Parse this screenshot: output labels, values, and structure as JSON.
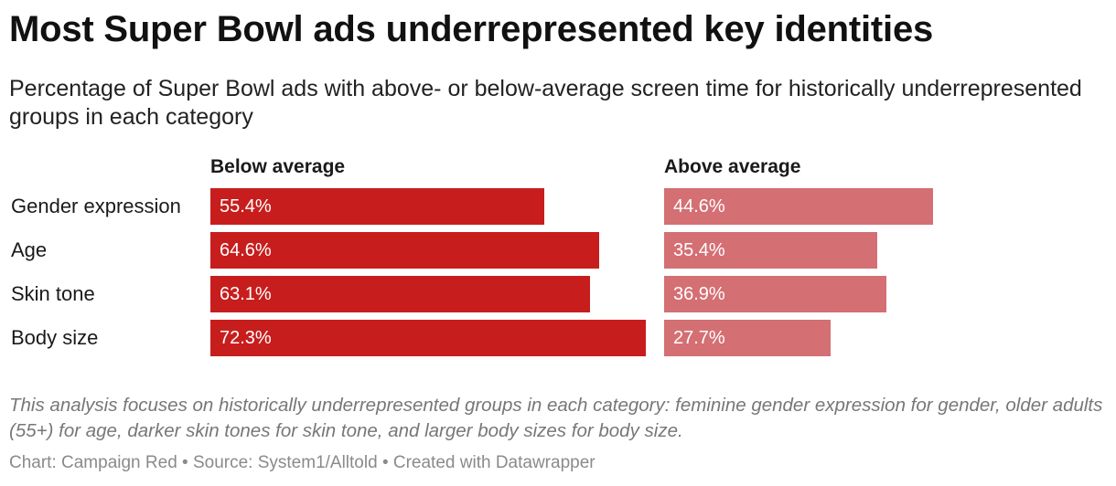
{
  "chart_data": {
    "type": "bar",
    "title": "Most Super Bowl ads underrepresented key identities",
    "subtitle": "Percentage of Super Bowl ads with above- or below-average screen time for historically underrepresented groups in each category",
    "categories": [
      "Gender expression",
      "Age",
      "Skin tone",
      "Body size"
    ],
    "series": [
      {
        "name": "Below average",
        "values": [
          55.4,
          64.6,
          63.1,
          72.3
        ],
        "labels": [
          "55.4%",
          "64.6%",
          "63.1%",
          "72.3%"
        ],
        "color": "#c71e1d"
      },
      {
        "name": "Above average",
        "values": [
          44.6,
          35.4,
          36.9,
          27.7
        ],
        "labels": [
          "44.6%",
          "35.4%",
          "36.9%",
          "27.7%"
        ],
        "color": "#d46f73"
      }
    ],
    "xlim": [
      0,
      72.3
    ],
    "grid": false,
    "legend": "column headers"
  },
  "note": "This analysis focuses on historically underrepresented groups in each category: feminine gender expression for gender, older adults (55+) for age, darker skin tones for skin tone, and larger body sizes for body size.",
  "source": "Chart: Campaign Red • Source: System1/Alltold • Created with Datawrapper"
}
